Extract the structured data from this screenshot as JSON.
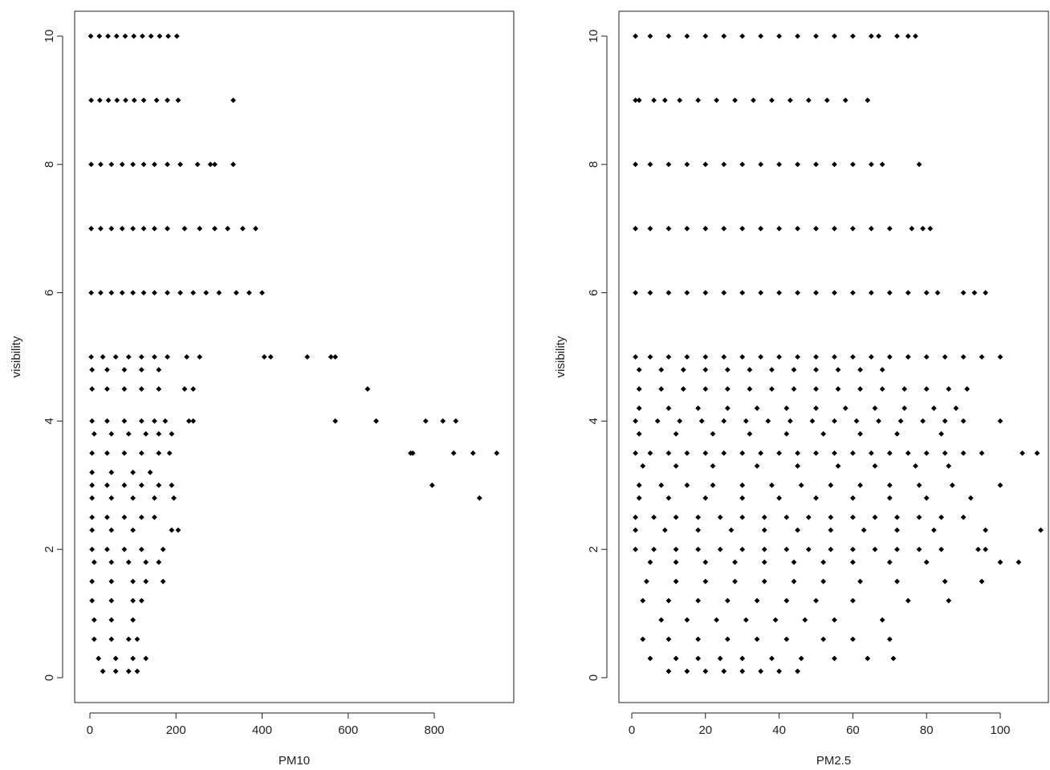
{
  "chart_data": [
    {
      "type": "scatter",
      "xlabel": "PM10",
      "ylabel": "visibility",
      "color": "#000000",
      "xlim": [
        -35.4,
        984.6
      ],
      "ylim": [
        -0.3875,
        10.3875
      ],
      "xticks": [
        0,
        200,
        400,
        600,
        800
      ],
      "yticks": [
        0,
        2,
        4,
        6,
        8,
        10
      ],
      "x": [
        2,
        22,
        42,
        62,
        82,
        102,
        122,
        142,
        162,
        182,
        202,
        3,
        23,
        43,
        63,
        83,
        103,
        125,
        155,
        180,
        205,
        333,
        3,
        25,
        50,
        75,
        100,
        125,
        150,
        180,
        210,
        250,
        280,
        290,
        333,
        3,
        25,
        50,
        75,
        100,
        125,
        150,
        180,
        220,
        255,
        290,
        320,
        355,
        385,
        3,
        25,
        50,
        75,
        100,
        125,
        150,
        180,
        210,
        240,
        270,
        300,
        340,
        370,
        400,
        3,
        30,
        60,
        90,
        120,
        150,
        180,
        225,
        255,
        405,
        420,
        505,
        560,
        570,
        5,
        40,
        80,
        120,
        160,
        5,
        40,
        80,
        120,
        160,
        220,
        240,
        645,
        5,
        40,
        80,
        120,
        150,
        175,
        230,
        240,
        570,
        665,
        780,
        820,
        850,
        10,
        50,
        90,
        130,
        160,
        190,
        5,
        40,
        80,
        120,
        160,
        185,
        745,
        750,
        845,
        890,
        945,
        5,
        50,
        100,
        140,
        5,
        40,
        80,
        120,
        160,
        190,
        795,
        5,
        50,
        100,
        150,
        195,
        905,
        5,
        40,
        80,
        120,
        150,
        5,
        50,
        100,
        190,
        205,
        5,
        40,
        80,
        120,
        170,
        10,
        50,
        90,
        130,
        160,
        5,
        50,
        100,
        130,
        170,
        5,
        50,
        100,
        120,
        10,
        50,
        100,
        10,
        50,
        90,
        110,
        20,
        60,
        100,
        130,
        30,
        60,
        90,
        110
      ],
      "values": [
        10,
        10,
        10,
        10,
        10,
        10,
        10,
        10,
        10,
        10,
        10,
        9,
        9,
        9,
        9,
        9,
        9,
        9,
        9,
        9,
        9,
        9,
        8,
        8,
        8,
        8,
        8,
        8,
        8,
        8,
        8,
        8,
        8,
        8,
        8,
        7,
        7,
        7,
        7,
        7,
        7,
        7,
        7,
        7,
        7,
        7,
        7,
        7,
        7,
        6,
        6,
        6,
        6,
        6,
        6,
        6,
        6,
        6,
        6,
        6,
        6,
        6,
        6,
        6,
        5,
        5,
        5,
        5,
        5,
        5,
        5,
        5,
        5,
        5,
        5,
        5,
        5,
        5,
        4.8,
        4.8,
        4.8,
        4.8,
        4.8,
        4.5,
        4.5,
        4.5,
        4.5,
        4.5,
        4.5,
        4.5,
        4.5,
        4,
        4,
        4,
        4,
        4,
        4,
        4,
        4,
        4,
        4,
        4,
        4,
        4,
        3.8,
        3.8,
        3.8,
        3.8,
        3.8,
        3.8,
        3.5,
        3.5,
        3.5,
        3.5,
        3.5,
        3.5,
        3.5,
        3.5,
        3.5,
        3.5,
        3.5,
        3.2,
        3.2,
        3.2,
        3.2,
        3,
        3,
        3,
        3,
        3,
        3,
        3,
        2.8,
        2.8,
        2.8,
        2.8,
        2.8,
        2.8,
        2.5,
        2.5,
        2.5,
        2.5,
        2.5,
        2.3,
        2.3,
        2.3,
        2.3,
        2.3,
        2,
        2,
        2,
        2,
        2,
        1.8,
        1.8,
        1.8,
        1.8,
        1.8,
        1.5,
        1.5,
        1.5,
        1.5,
        1.5,
        1.2,
        1.2,
        1.2,
        1.2,
        0.9,
        0.9,
        0.9,
        0.6,
        0.6,
        0.6,
        0.6,
        0.3,
        0.3,
        0.3,
        0.3,
        0.1,
        0.1,
        0.1,
        0.1
      ]
    },
    {
      "type": "scatter",
      "xlabel": "PM2.5",
      "ylabel": "visibility",
      "color": "#000000",
      "xlim": [
        -3.49,
        113.07
      ],
      "ylim": [
        -0.3875,
        10.3875
      ],
      "xticks": [
        0,
        20,
        40,
        60,
        80,
        100
      ],
      "yticks": [
        0,
        2,
        4,
        6,
        8,
        10
      ],
      "x": [
        1,
        5,
        10,
        15,
        20,
        25,
        30,
        35,
        40,
        45,
        50,
        55,
        60,
        65,
        67,
        72,
        75,
        77,
        1,
        2,
        6,
        9,
        13,
        18,
        23,
        28,
        33,
        38,
        43,
        48,
        53,
        58,
        64,
        1,
        5,
        10,
        15,
        20,
        25,
        30,
        35,
        40,
        45,
        50,
        55,
        60,
        65,
        68,
        78,
        1,
        5,
        10,
        15,
        20,
        25,
        30,
        35,
        40,
        45,
        50,
        55,
        60,
        65,
        70,
        76,
        79,
        81,
        1,
        5,
        10,
        15,
        20,
        25,
        30,
        35,
        40,
        45,
        50,
        55,
        60,
        65,
        70,
        75,
        80,
        83,
        90,
        93,
        96,
        1,
        5,
        10,
        15,
        20,
        25,
        30,
        35,
        40,
        45,
        50,
        55,
        60,
        65,
        70,
        75,
        80,
        85,
        90,
        95,
        100,
        2,
        8,
        14,
        20,
        26,
        32,
        38,
        44,
        50,
        56,
        62,
        68,
        2,
        8,
        14,
        20,
        26,
        32,
        38,
        44,
        50,
        56,
        62,
        68,
        74,
        80,
        86,
        91,
        2,
        10,
        18,
        26,
        34,
        42,
        50,
        58,
        66,
        74,
        82,
        88,
        1,
        7,
        13,
        19,
        25,
        31,
        37,
        43,
        49,
        55,
        61,
        67,
        73,
        79,
        85,
        90,
        100,
        2,
        12,
        22,
        32,
        42,
        52,
        62,
        72,
        84,
        1,
        5,
        10,
        15,
        20,
        25,
        30,
        35,
        40,
        45,
        50,
        55,
        60,
        65,
        70,
        75,
        80,
        85,
        90,
        95,
        106,
        110,
        3,
        12,
        22,
        34,
        45,
        56,
        66,
        77,
        86,
        2,
        8,
        15,
        22,
        30,
        38,
        46,
        54,
        62,
        70,
        78,
        87,
        100,
        2,
        10,
        20,
        30,
        40,
        50,
        60,
        70,
        80,
        92,
        1,
        6,
        12,
        18,
        24,
        30,
        36,
        42,
        48,
        54,
        60,
        66,
        72,
        78,
        84,
        90,
        1,
        9,
        18,
        27,
        36,
        45,
        54,
        63,
        72,
        82,
        96,
        111,
        1,
        6,
        12,
        18,
        24,
        30,
        36,
        42,
        48,
        54,
        60,
        66,
        72,
        78,
        84,
        94,
        96,
        5,
        12,
        20,
        28,
        36,
        44,
        52,
        60,
        70,
        80,
        100,
        105,
        4,
        12,
        20,
        28,
        36,
        44,
        52,
        62,
        72,
        85,
        95,
        3,
        10,
        18,
        26,
        34,
        42,
        50,
        60,
        75,
        86,
        8,
        15,
        23,
        31,
        39,
        47,
        55,
        68,
        3,
        10,
        18,
        26,
        34,
        42,
        52,
        60,
        70,
        5,
        12,
        18,
        24,
        30,
        38,
        46,
        55,
        64,
        71,
        10,
        15,
        20,
        25,
        30,
        35,
        40,
        45
      ],
      "values": [
        10,
        10,
        10,
        10,
        10,
        10,
        10,
        10,
        10,
        10,
        10,
        10,
        10,
        10,
        10,
        10,
        10,
        10,
        9,
        9,
        9,
        9,
        9,
        9,
        9,
        9,
        9,
        9,
        9,
        9,
        9,
        9,
        9,
        8,
        8,
        8,
        8,
        8,
        8,
        8,
        8,
        8,
        8,
        8,
        8,
        8,
        8,
        8,
        8,
        7,
        7,
        7,
        7,
        7,
        7,
        7,
        7,
        7,
        7,
        7,
        7,
        7,
        7,
        7,
        7,
        7,
        7,
        6,
        6,
        6,
        6,
        6,
        6,
        6,
        6,
        6,
        6,
        6,
        6,
        6,
        6,
        6,
        6,
        6,
        6,
        6,
        6,
        6,
        5,
        5,
        5,
        5,
        5,
        5,
        5,
        5,
        5,
        5,
        5,
        5,
        5,
        5,
        5,
        5,
        5,
        5,
        5,
        5,
        5,
        4.8,
        4.8,
        4.8,
        4.8,
        4.8,
        4.8,
        4.8,
        4.8,
        4.8,
        4.8,
        4.8,
        4.8,
        4.5,
        4.5,
        4.5,
        4.5,
        4.5,
        4.5,
        4.5,
        4.5,
        4.5,
        4.5,
        4.5,
        4.5,
        4.5,
        4.5,
        4.5,
        4.5,
        4.2,
        4.2,
        4.2,
        4.2,
        4.2,
        4.2,
        4.2,
        4.2,
        4.2,
        4.2,
        4.2,
        4.2,
        4,
        4,
        4,
        4,
        4,
        4,
        4,
        4,
        4,
        4,
        4,
        4,
        4,
        4,
        4,
        4,
        4,
        3.8,
        3.8,
        3.8,
        3.8,
        3.8,
        3.8,
        3.8,
        3.8,
        3.8,
        3.5,
        3.5,
        3.5,
        3.5,
        3.5,
        3.5,
        3.5,
        3.5,
        3.5,
        3.5,
        3.5,
        3.5,
        3.5,
        3.5,
        3.5,
        3.5,
        3.5,
        3.5,
        3.5,
        3.5,
        3.5,
        3.5,
        3.3,
        3.3,
        3.3,
        3.3,
        3.3,
        3.3,
        3.3,
        3.3,
        3.3,
        3,
        3,
        3,
        3,
        3,
        3,
        3,
        3,
        3,
        3,
        3,
        3,
        3,
        2.8,
        2.8,
        2.8,
        2.8,
        2.8,
        2.8,
        2.8,
        2.8,
        2.8,
        2.8,
        2.5,
        2.5,
        2.5,
        2.5,
        2.5,
        2.5,
        2.5,
        2.5,
        2.5,
        2.5,
        2.5,
        2.5,
        2.5,
        2.5,
        2.5,
        2.5,
        2.3,
        2.3,
        2.3,
        2.3,
        2.3,
        2.3,
        2.3,
        2.3,
        2.3,
        2.3,
        2.3,
        2.3,
        2,
        2,
        2,
        2,
        2,
        2,
        2,
        2,
        2,
        2,
        2,
        2,
        2,
        2,
        2,
        2,
        2,
        1.8,
        1.8,
        1.8,
        1.8,
        1.8,
        1.8,
        1.8,
        1.8,
        1.8,
        1.8,
        1.8,
        1.8,
        1.5,
        1.5,
        1.5,
        1.5,
        1.5,
        1.5,
        1.5,
        1.5,
        1.5,
        1.5,
        1.5,
        1.2,
        1.2,
        1.2,
        1.2,
        1.2,
        1.2,
        1.2,
        1.2,
        1.2,
        1.2,
        0.9,
        0.9,
        0.9,
        0.9,
        0.9,
        0.9,
        0.9,
        0.9,
        0.6,
        0.6,
        0.6,
        0.6,
        0.6,
        0.6,
        0.6,
        0.6,
        0.6,
        0.3,
        0.3,
        0.3,
        0.3,
        0.3,
        0.3,
        0.3,
        0.3,
        0.3,
        0.3,
        0.1,
        0.1,
        0.1,
        0.1,
        0.1,
        0.1,
        0.1,
        0.1
      ]
    }
  ]
}
